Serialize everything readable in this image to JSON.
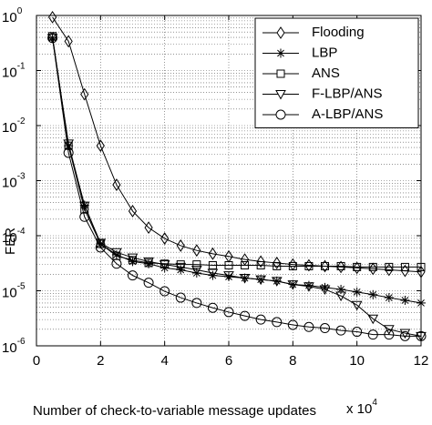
{
  "chart_data": {
    "type": "line",
    "x_label": "Number of check-to-variable message updates",
    "x_multiplier": "x 10",
    "x_multiplier_exponent": "4",
    "y_label": "FER",
    "log_y": true,
    "grid": true,
    "legend": "upper right",
    "xlim": [
      0,
      12
    ],
    "xticks": [
      0,
      2,
      4,
      6,
      8,
      10,
      12
    ],
    "ylim": [
      1e-06,
      1
    ],
    "yticks": [
      {
        "value": 1e-06,
        "label": "10",
        "exponent": "-6"
      },
      {
        "value": 1e-05,
        "label": "10",
        "exponent": "-5"
      },
      {
        "value": 0.0001,
        "label": "10",
        "exponent": "-4"
      },
      {
        "value": 0.001,
        "label": "10",
        "exponent": "-3"
      },
      {
        "value": 0.01,
        "label": "10",
        "exponent": "-2"
      },
      {
        "value": 0.1,
        "label": "10",
        "exponent": "-1"
      },
      {
        "value": 1,
        "label": "10",
        "exponent": "0"
      }
    ],
    "x": [
      0.5,
      1,
      1.5,
      2,
      2.5,
      3,
      3.5,
      4,
      4.5,
      5,
      5.5,
      6,
      6.5,
      7,
      7.5,
      8,
      8.5,
      9,
      9.5,
      10,
      10.5,
      11,
      11.5,
      12
    ],
    "series": [
      {
        "name": "Flooding",
        "color": "#000000",
        "marker": "diamond",
        "values": [
          0.93,
          0.34,
          0.037,
          0.0043,
          0.00084,
          0.00028,
          0.00014,
          8.9e-05,
          6.6e-05,
          5.4e-05,
          4.7e-05,
          4.2e-05,
          3.7e-05,
          3.4e-05,
          3.2e-05,
          3e-05,
          2.9e-05,
          2.8e-05,
          2.7e-05,
          2.6e-05,
          2.5e-05,
          2.4e-05,
          2.3e-05,
          2.2e-05
        ]
      },
      {
        "name": "LBP",
        "color": "#000000",
        "marker": "star",
        "values": [
          0.39,
          0.0043,
          0.00036,
          7.1e-05,
          4.5e-05,
          3.4e-05,
          3.1e-05,
          2.6e-05,
          2.4e-05,
          2.1e-05,
          1.9e-05,
          1.8e-05,
          1.7e-05,
          1.6e-05,
          1.5e-05,
          1.3e-05,
          1.25e-05,
          1.15e-05,
          1.06e-05,
          9.5e-06,
          8.5e-06,
          7.5e-06,
          6.7e-06,
          6e-06
        ]
      },
      {
        "name": "ANS",
        "color": "#000000",
        "marker": "square",
        "values": [
          0.42,
          0.0043,
          0.0003,
          7.1e-05,
          4.3e-05,
          3.6e-05,
          3.2e-05,
          3.1e-05,
          3e-05,
          3e-05,
          2.9e-05,
          2.9e-05,
          2.9e-05,
          2.9e-05,
          2.8e-05,
          2.8e-05,
          2.8e-05,
          2.8e-05,
          2.8e-05,
          2.7e-05,
          2.7e-05,
          2.7e-05,
          2.7e-05,
          2.7e-05
        ]
      },
      {
        "name": "F-LBP/ANS",
        "color": "#000000",
        "marker": "triangle",
        "values": [
          0.39,
          0.0047,
          0.00035,
          7.4e-05,
          5e-05,
          4e-05,
          3.4e-05,
          3e-05,
          2.7e-05,
          2.4e-05,
          2.1e-05,
          1.9e-05,
          1.7e-05,
          1.6e-05,
          1.5e-05,
          1.3e-05,
          1.2e-05,
          1.06e-05,
          8.1e-06,
          5.5e-06,
          3.1e-06,
          2e-06,
          1.7e-06,
          1.5e-06
        ]
      },
      {
        "name": "A-LBP/ANS",
        "color": "#000000",
        "marker": "circle",
        "values": [
          0.39,
          0.0032,
          0.00022,
          6.1e-05,
          3.1e-05,
          1.9e-05,
          1.4e-05,
          9.8e-06,
          7.5e-06,
          6e-06,
          4.9e-06,
          4.1e-06,
          3.5e-06,
          3e-06,
          2.7e-06,
          2.4e-06,
          2.2e-06,
          2.1e-06,
          1.9e-06,
          1.8e-06,
          1.6e-06,
          1.6e-06,
          1.5e-06,
          1.5e-06
        ]
      }
    ]
  }
}
